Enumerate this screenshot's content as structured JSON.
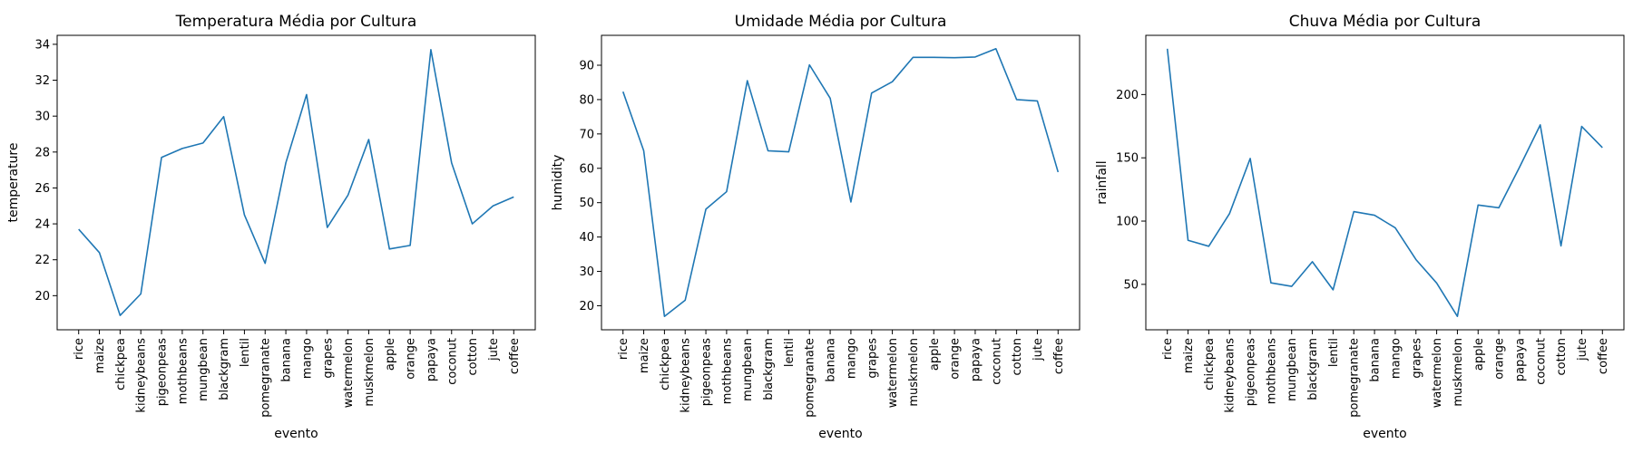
{
  "chart_data": [
    {
      "type": "line",
      "title": "Temperatura Média por Cultura",
      "xlabel": "evento",
      "ylabel": "temperature",
      "categories": [
        "rice",
        "maize",
        "chickpea",
        "kidneybeans",
        "pigeonpeas",
        "mothbeans",
        "mungbean",
        "blackgram",
        "lentil",
        "pomegranate",
        "banana",
        "mango",
        "grapes",
        "watermelon",
        "muskmelon",
        "apple",
        "orange",
        "papaya",
        "coconut",
        "cotton",
        "jute",
        "coffee"
      ],
      "values": [
        23.7,
        22.4,
        18.9,
        20.1,
        27.7,
        28.2,
        28.5,
        29.97,
        24.5,
        21.8,
        27.4,
        31.2,
        23.8,
        25.6,
        28.7,
        22.6,
        22.8,
        33.7,
        27.4,
        24.0,
        25.0,
        25.5
      ],
      "ylim": [
        18.1,
        34.5
      ],
      "yticks": [
        20,
        22,
        24,
        26,
        28,
        30,
        32,
        34
      ],
      "color": "#1f77b4"
    },
    {
      "type": "line",
      "title": "Umidade Média por Cultura",
      "xlabel": "evento",
      "ylabel": "humidity",
      "categories": [
        "rice",
        "maize",
        "chickpea",
        "kidneybeans",
        "pigeonpeas",
        "mothbeans",
        "mungbean",
        "blackgram",
        "lentil",
        "pomegranate",
        "banana",
        "mango",
        "grapes",
        "watermelon",
        "muskmelon",
        "apple",
        "orange",
        "papaya",
        "coconut",
        "cotton",
        "jute",
        "coffee"
      ],
      "values": [
        82.3,
        65.1,
        16.9,
        21.6,
        48.1,
        53.2,
        85.5,
        65.1,
        64.8,
        90.1,
        80.4,
        50.2,
        81.9,
        85.2,
        92.3,
        92.3,
        92.2,
        92.4,
        94.8,
        80.0,
        79.6,
        58.9
      ],
      "ylim": [
        13.0,
        98.7
      ],
      "yticks": [
        20,
        30,
        40,
        50,
        60,
        70,
        80,
        90
      ],
      "color": "#1f77b4"
    },
    {
      "type": "line",
      "title": "Chuva Média por Cultura",
      "xlabel": "evento",
      "ylabel": "rainfall",
      "categories": [
        "rice",
        "maize",
        "chickpea",
        "kidneybeans",
        "pigeonpeas",
        "mothbeans",
        "mungbean",
        "blackgram",
        "lentil",
        "pomegranate",
        "banana",
        "mango",
        "grapes",
        "watermelon",
        "muskmelon",
        "apple",
        "orange",
        "papaya",
        "coconut",
        "cotton",
        "jute",
        "coffee"
      ],
      "values": [
        236.2,
        84.8,
        80.1,
        105.9,
        149.5,
        51.2,
        48.4,
        67.9,
        45.7,
        107.5,
        104.6,
        94.7,
        69.6,
        51.0,
        24.7,
        112.7,
        110.5,
        142.6,
        176.0,
        80.4,
        174.8,
        158.1
      ],
      "ylim": [
        14.1,
        246.8
      ],
      "yticks": [
        50,
        100,
        150,
        200
      ],
      "color": "#1f77b4"
    }
  ]
}
